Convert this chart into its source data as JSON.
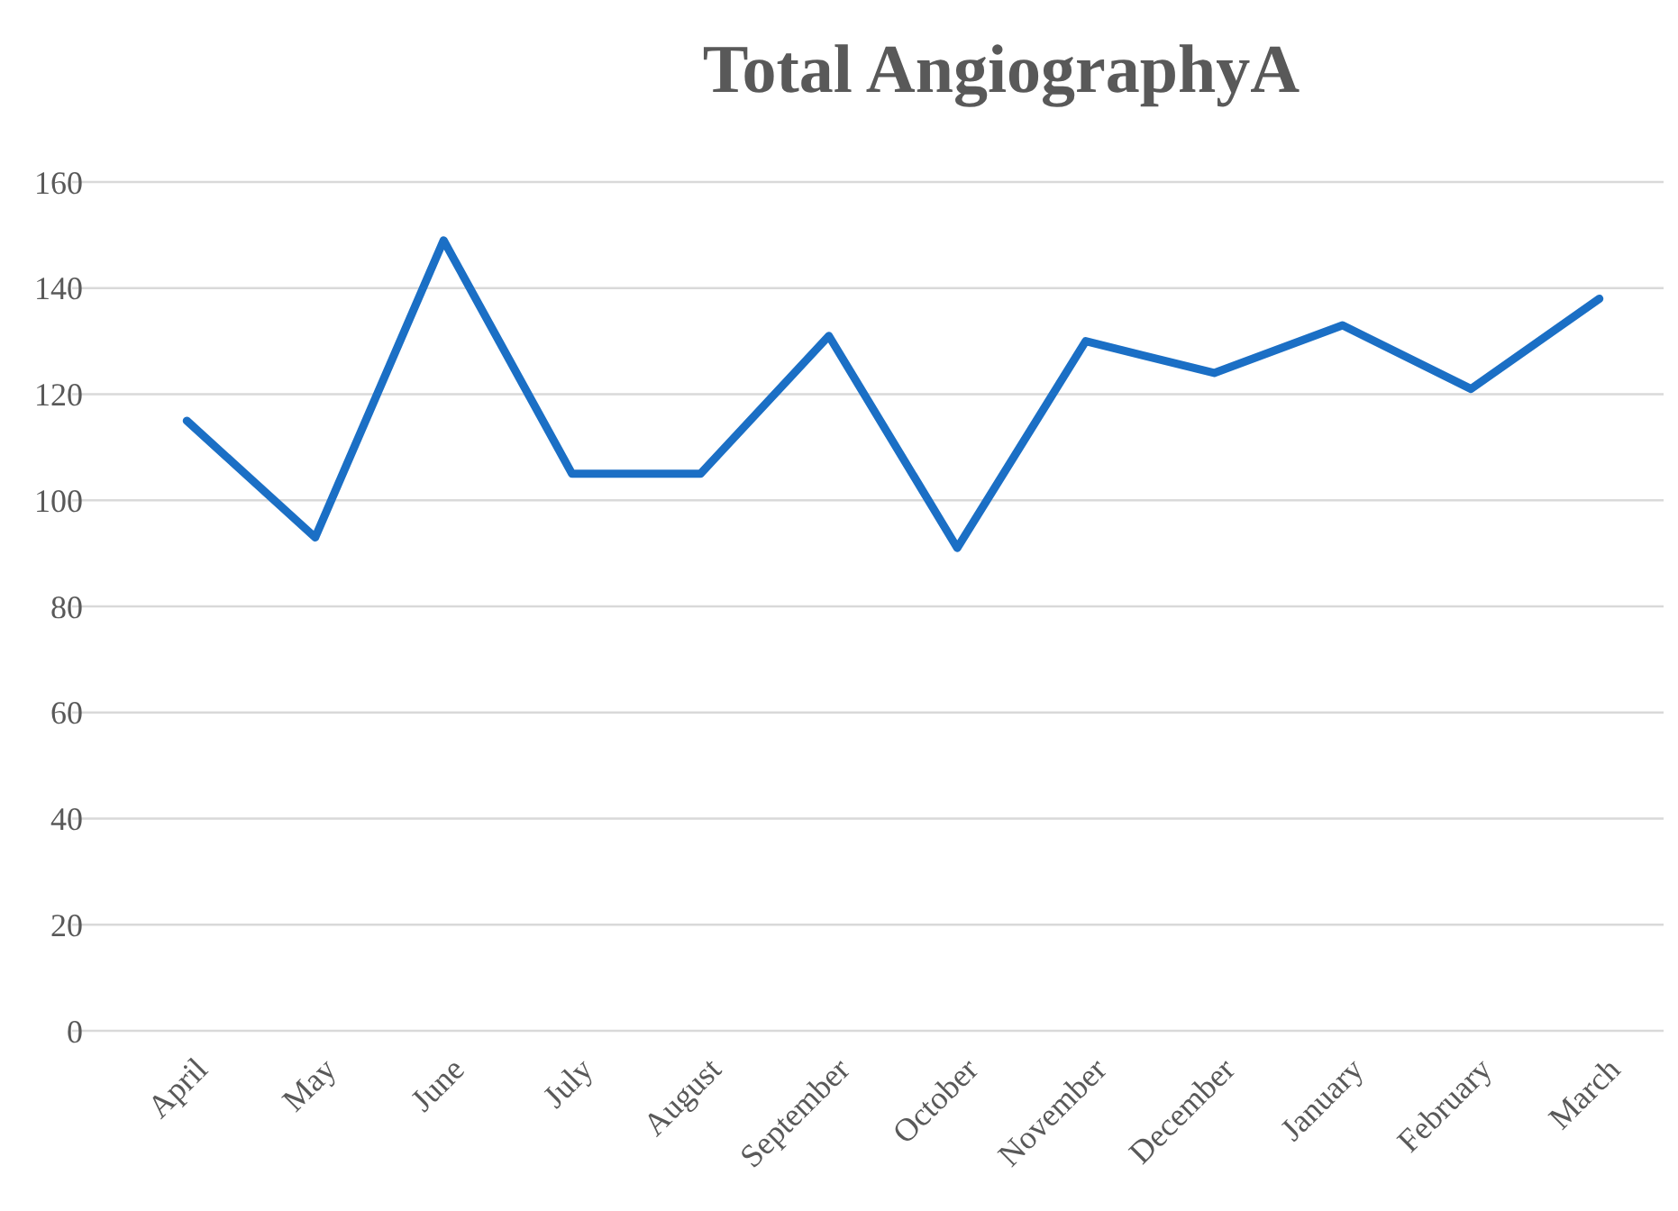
{
  "chart_data": {
    "type": "line",
    "title": "Total AngiographyA",
    "categories": [
      "April",
      "May",
      "June",
      "July",
      "August",
      "September",
      "October",
      "November",
      "December",
      "January",
      "February",
      "March"
    ],
    "series": [
      {
        "color": "#1b6fc5",
        "values": [
          115,
          93,
          149,
          105,
          105,
          131,
          91,
          130,
          124,
          133,
          121,
          138
        ]
      }
    ],
    "ylim": [
      0,
      160
    ],
    "yticks": [
      0,
      20,
      40,
      60,
      80,
      100,
      120,
      140,
      160
    ],
    "grid": "y",
    "marker": "none",
    "line_style": "solid"
  }
}
